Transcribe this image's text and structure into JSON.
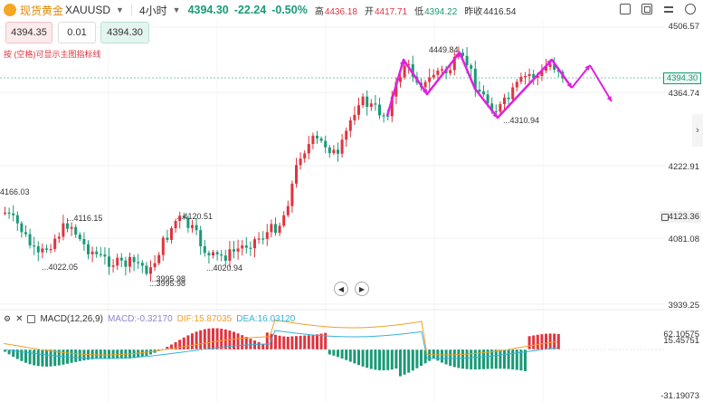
{
  "header": {
    "name": "现货黄金",
    "code": "XAUUSD",
    "period": "4小时",
    "price": "4394.30",
    "change": "-22.24",
    "change_pct": "-0.50%",
    "high_label": "高",
    "high": "4436.18",
    "open_label": "开",
    "open": "4417.71",
    "low_label": "低",
    "low": "4394.22",
    "prev_label": "昨收",
    "prev": "4416.54",
    "icons": [
      "toggle-icon",
      "fullscreen-icon",
      "settings-icon",
      "info-icon"
    ]
  },
  "order": {
    "sell_price": "4394.35",
    "quantity": "0.01",
    "buy_price": "4394.30",
    "hint": "按 (空格)可显示主图指标线"
  },
  "price_axis": {
    "ticks": [
      "4506.57",
      "4364.74",
      "4222.91",
      "4081.08",
      "3939.25"
    ],
    "current": "4394.30",
    "hover": "4123.36"
  },
  "annotations": {
    "high1": "4449.84",
    "low1": "4310.94",
    "left_high": "4166.03",
    "mid_high": "4116.15",
    "left_low": "4022.05",
    "low_bottom_a": "3995.98",
    "low_bottom_b": "3995.98",
    "right_high": "4120.51",
    "right_low": "4020.94"
  },
  "macd": {
    "title": "MACD(12,26,9)",
    "macd": "MACD:-0.32170",
    "dif": "DIF:15.87035",
    "dea": "DEA:16.03120",
    "axis": [
      "62.10575",
      "15.45751",
      "-31.19073"
    ]
  },
  "colors": {
    "up": "#e0343f",
    "down": "#1a9a77",
    "arrow": "#e020e0",
    "dif": "#f0a028",
    "dea": "#36b2d8"
  }
}
